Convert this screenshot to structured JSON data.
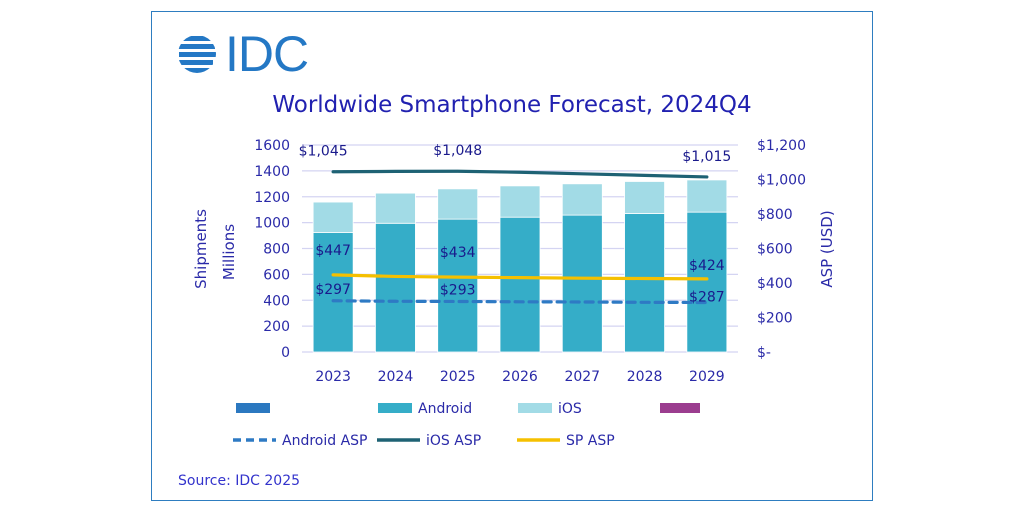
{
  "logo": {
    "text": "IDC",
    "icon": "idc-globe-icon"
  },
  "chart_data": {
    "type": "bar",
    "title": "Worldwide Smartphone Forecast, 2024Q4",
    "categories": [
      "2023",
      "2024",
      "2025",
      "2026",
      "2027",
      "2028",
      "2029"
    ],
    "ylabel": "Shipments\nMillions",
    "ylabel_lines": [
      "Shipments",
      "Millions"
    ],
    "y2label": "ASP (USD)",
    "ylim": [
      0,
      1600
    ],
    "y2lim": [
      0,
      1200
    ],
    "yticks": [
      "0",
      "200",
      "400",
      "600",
      "800",
      "1000",
      "1200",
      "1400",
      "1600"
    ],
    "y2ticks": [
      "$-",
      "$200",
      "$400",
      "$600",
      "$800",
      "$1,000",
      "$1,200"
    ],
    "grid": true,
    "stacked": true,
    "series": [
      {
        "name": "Android",
        "kind": "bar",
        "axis": "left",
        "color": "#35adc8",
        "values": [
          923,
          995,
          1027,
          1042,
          1058,
          1071,
          1081
        ]
      },
      {
        "name": "iOS",
        "kind": "bar",
        "axis": "left",
        "color": "#a2dbe6",
        "values": [
          236,
          233,
          234,
          242,
          242,
          247,
          249
        ]
      },
      {
        "name": "Android ASP",
        "kind": "line",
        "style": "dashed",
        "axis": "right",
        "color": "#2e7ac4",
        "values": [
          297,
          294,
          293,
          291,
          290,
          288,
          287
        ]
      },
      {
        "name": "iOS ASP",
        "kind": "line",
        "style": "solid",
        "axis": "right",
        "color": "#1e6274",
        "values": [
          1045,
          1047,
          1048,
          1042,
          1033,
          1024,
          1015
        ]
      },
      {
        "name": "SP ASP",
        "kind": "line",
        "style": "solid",
        "axis": "right",
        "color": "#f5c000",
        "values": [
          447,
          438,
          434,
          431,
          428,
          426,
          424
        ]
      }
    ],
    "data_labels": [
      {
        "series": "iOS ASP",
        "index": 0,
        "text": "$1,045"
      },
      {
        "series": "iOS ASP",
        "index": 2,
        "text": "$1,048"
      },
      {
        "series": "iOS ASP",
        "index": 6,
        "text": "$1,015"
      },
      {
        "series": "SP ASP",
        "index": 0,
        "text": "$447"
      },
      {
        "series": "SP ASP",
        "index": 2,
        "text": "$434"
      },
      {
        "series": "SP ASP",
        "index": 6,
        "text": "$424"
      },
      {
        "series": "Android ASP",
        "index": 0,
        "text": "$297"
      },
      {
        "series": "Android ASP",
        "index": 2,
        "text": "$293"
      },
      {
        "series": "Android ASP",
        "index": 6,
        "text": "$287"
      }
    ],
    "legend": {
      "placement": "bottom",
      "entries": [
        {
          "label": "",
          "kind": "swatch",
          "color": "#2b78c0"
        },
        {
          "label": "Android",
          "kind": "swatch",
          "color": "#35adc8"
        },
        {
          "label": "iOS",
          "kind": "swatch",
          "color": "#a2dbe6"
        },
        {
          "label": "",
          "kind": "swatch",
          "color": "#9b3d8f"
        },
        {
          "label": "Android ASP",
          "kind": "dashed",
          "color": "#2e7ac4"
        },
        {
          "label": "iOS ASP",
          "kind": "line",
          "color": "#1e6274"
        },
        {
          "label": "SP ASP",
          "kind": "line",
          "color": "#f5c000"
        }
      ]
    }
  },
  "source": "Source: IDC 2025",
  "colors": {
    "text": "#2a2aa8",
    "gridline": "#d4d4f2",
    "frame": "#2e7dc0"
  }
}
